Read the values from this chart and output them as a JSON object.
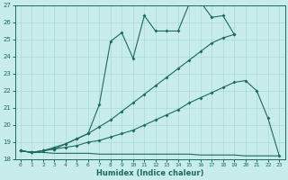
{
  "title": "",
  "xlabel": "Humidex (Indice chaleur)",
  "xlim": [
    -0.5,
    23.5
  ],
  "ylim": [
    18,
    27
  ],
  "yticks": [
    18,
    19,
    20,
    21,
    22,
    23,
    24,
    25,
    26,
    27
  ],
  "xticks": [
    0,
    1,
    2,
    3,
    4,
    5,
    6,
    7,
    8,
    9,
    10,
    11,
    12,
    13,
    14,
    15,
    16,
    17,
    18,
    19,
    20,
    21,
    22,
    23
  ],
  "line_color": "#1a6b5a",
  "bg_color": "#c8ecec",
  "grid_color": "#a8d8d8",
  "line1_x": [
    0,
    1,
    2,
    3,
    4,
    5,
    6,
    7,
    8,
    9,
    10,
    11,
    12,
    13,
    14,
    15,
    16,
    17,
    18,
    19
  ],
  "line1_y": [
    18.5,
    18.4,
    18.5,
    18.6,
    18.9,
    19.2,
    19.5,
    21.2,
    24.9,
    25.4,
    23.9,
    26.4,
    25.5,
    25.5,
    25.5,
    27.1,
    27.2,
    26.3,
    26.4,
    25.3
  ],
  "line2_x": [
    0,
    1,
    2,
    3,
    4,
    5,
    6,
    7,
    8,
    9,
    10,
    11,
    12,
    13,
    14,
    15,
    16,
    17,
    18,
    19
  ],
  "line2_y": [
    18.5,
    18.4,
    18.5,
    18.7,
    18.9,
    19.2,
    19.5,
    19.9,
    20.3,
    20.8,
    21.3,
    21.8,
    22.3,
    22.8,
    23.3,
    23.8,
    24.3,
    24.8,
    25.1,
    25.3
  ],
  "line3_x": [
    0,
    1,
    2,
    3,
    4,
    5,
    6,
    7,
    8,
    9,
    10,
    11,
    12,
    13,
    14,
    15,
    16,
    17,
    18,
    19,
    20,
    21,
    22,
    23
  ],
  "line3_y": [
    18.5,
    18.4,
    18.5,
    18.6,
    18.7,
    18.8,
    19.0,
    19.1,
    19.3,
    19.5,
    19.7,
    20.0,
    20.3,
    20.6,
    20.9,
    21.3,
    21.6,
    21.9,
    22.2,
    22.5,
    22.6,
    22.0,
    20.4,
    18.2
  ],
  "line4_x": [
    0,
    1,
    2,
    3,
    4,
    5,
    6,
    7,
    8,
    9,
    10,
    11,
    12,
    13,
    14,
    15,
    16,
    17,
    18,
    19,
    20,
    21,
    22,
    23
  ],
  "line4_y": [
    18.5,
    18.4,
    18.4,
    18.35,
    18.35,
    18.35,
    18.35,
    18.3,
    18.3,
    18.3,
    18.3,
    18.3,
    18.3,
    18.3,
    18.3,
    18.3,
    18.25,
    18.25,
    18.25,
    18.25,
    18.2,
    18.2,
    18.2,
    18.2
  ]
}
